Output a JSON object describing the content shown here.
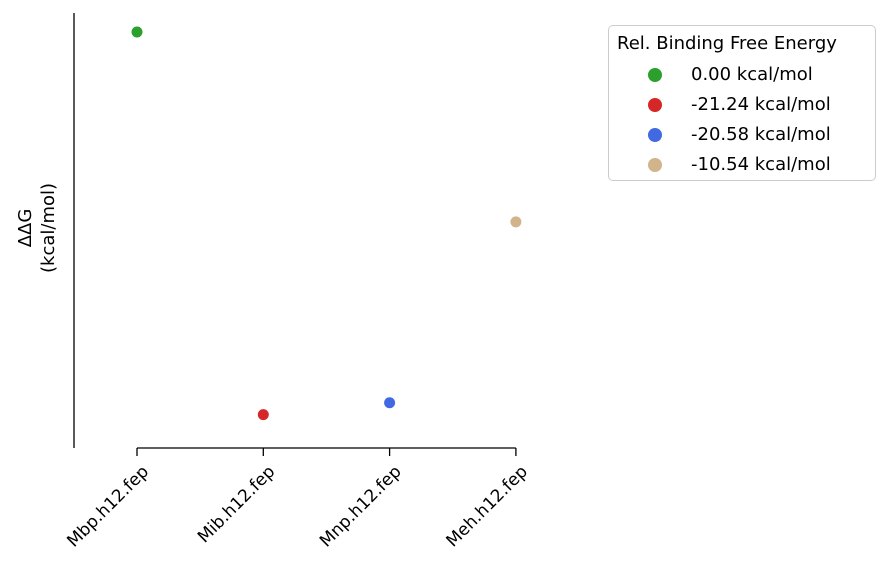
{
  "chart_data": {
    "type": "scatter",
    "categories": [
      "Mbp.h12.fep",
      "Mib.h12.fep",
      "Mnp.h12.fep",
      "Meh.h12.fep"
    ],
    "values": [
      0.0,
      -21.24,
      -20.58,
      -10.54
    ],
    "colors": [
      "#2ca02c",
      "#d62728",
      "#4169e1",
      "#d2b48c"
    ],
    "ylabel": "ΔΔG\n(kcal/mol)",
    "ylim": [
      -23.0,
      1.0
    ],
    "y_ticks_shown": false,
    "grid": false,
    "legend": {
      "title": "Rel. Binding Free Energy",
      "placement": "outside-top-right",
      "entries": [
        "0.00 kcal/mol",
        "-21.24 kcal/mol",
        "-20.58 kcal/mol",
        "-10.54 kcal/mol"
      ]
    }
  }
}
